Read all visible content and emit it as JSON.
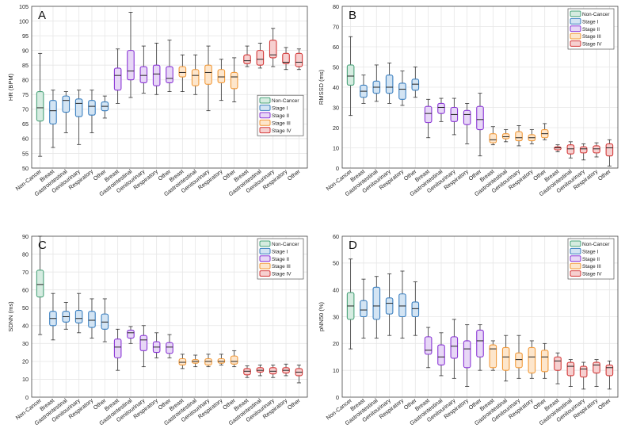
{
  "colors": {
    "Non-Cancer": {
      "edge": "#4aa37a",
      "fill": "#d6ece1"
    },
    "Stage I": {
      "edge": "#3a7fc0",
      "fill": "#d3e4f3"
    },
    "Stage II": {
      "edge": "#8a35d6",
      "fill": "#e7d7f6"
    },
    "Stage III": {
      "edge": "#f29a3a",
      "fill": "#fde6cc"
    },
    "Stage IV": {
      "edge": "#d43a3a",
      "fill": "#f6d0d0"
    },
    "median": "#222222",
    "whisker": "#333333",
    "grid": "#e6e6e6",
    "axis": "#444444"
  },
  "chart_data": [
    {
      "type": "box",
      "panel_label": "A",
      "ylabel": "HR (BPM)",
      "ylim": [
        50,
        105
      ],
      "yticks": [
        50,
        55,
        60,
        65,
        70,
        75,
        80,
        85,
        90,
        95,
        100,
        105
      ],
      "legend": [
        "Non-Cancer",
        "Stage I",
        "Stage II",
        "Stage III",
        "Stage IV"
      ],
      "legend_position": "middle-right",
      "categories": [
        "Non-Cancer",
        "Breast",
        "Gastrointestinal",
        "Genitourinary",
        "Respiratory",
        "Other",
        "Breast",
        "Gastrointestinal",
        "Genitourinary",
        "Respiratory",
        "Other",
        "Breast",
        "Gastrointestinal",
        "Genitourinary",
        "Respiratory",
        "Other",
        "Breast",
        "Gastrointestinal",
        "Genitourinary",
        "Respiratory",
        "Other"
      ],
      "groups": [
        "Non-Cancer",
        "Stage I",
        "Stage I",
        "Stage I",
        "Stage I",
        "Stage I",
        "Stage II",
        "Stage II",
        "Stage II",
        "Stage II",
        "Stage II",
        "Stage III",
        "Stage III",
        "Stage III",
        "Stage III",
        "Stage III",
        "Stage IV",
        "Stage IV",
        "Stage IV",
        "Stage IV",
        "Stage IV"
      ],
      "boxes": [
        [
          54,
          66,
          70.5,
          76,
          89
        ],
        [
          57,
          65,
          69.5,
          73,
          76.5
        ],
        [
          62,
          69,
          73,
          74.5,
          76
        ],
        [
          58,
          67.5,
          72,
          73.5,
          76.5
        ],
        [
          62,
          68,
          71,
          73,
          76.5
        ],
        [
          67,
          69.5,
          71,
          72.5,
          74.5
        ],
        [
          72,
          76.5,
          81.5,
          84,
          90.5
        ],
        [
          74,
          80,
          83,
          90,
          103
        ],
        [
          75.5,
          79,
          81.5,
          84.5,
          91.5
        ],
        [
          75,
          78,
          82,
          85,
          92.5
        ],
        [
          76,
          79,
          80.5,
          84.5,
          93.5
        ],
        [
          76,
          81,
          82.5,
          84.5,
          88.5
        ],
        [
          75,
          78,
          81.5,
          83.5,
          88.5
        ],
        [
          69.5,
          78.5,
          82.5,
          85,
          91.5
        ],
        [
          73,
          79,
          81,
          83.5,
          87
        ],
        [
          72.5,
          77,
          81,
          82.5,
          87.5
        ],
        [
          84.5,
          85.5,
          86.5,
          88.5,
          91.5
        ],
        [
          84,
          85,
          87,
          90,
          92.5
        ],
        [
          84.5,
          87.5,
          88.5,
          93.5,
          97.5
        ],
        [
          83.5,
          85.5,
          86,
          89,
          91
        ],
        [
          83.5,
          84.5,
          86,
          89,
          90.5
        ]
      ]
    },
    {
      "type": "box",
      "panel_label": "B",
      "ylabel": "RMSSD (ms)",
      "ylim": [
        0,
        80
      ],
      "yticks": [
        0,
        10,
        20,
        30,
        40,
        50,
        60,
        70,
        80
      ],
      "legend": [
        "Non-Cancer",
        "Stage I",
        "Stage II",
        "Stage III",
        "Stage IV"
      ],
      "legend_position": "top-right",
      "categories": [
        "Non-Cancer",
        "Breast",
        "Gastrointestinal",
        "Genitourinary",
        "Respiratory",
        "Other",
        "Breast",
        "Gastrointestinal",
        "Genitourinary",
        "Respiratory",
        "Other",
        "Breast",
        "Gastrointestinal",
        "Genitourinary",
        "Respiratory",
        "Other",
        "Breast",
        "Gastrointestinal",
        "Genitourinary",
        "Respiratory",
        "Other"
      ],
      "groups": [
        "Non-Cancer",
        "Stage I",
        "Stage I",
        "Stage I",
        "Stage I",
        "Stage I",
        "Stage II",
        "Stage II",
        "Stage II",
        "Stage II",
        "Stage II",
        "Stage III",
        "Stage III",
        "Stage III",
        "Stage III",
        "Stage III",
        "Stage IV",
        "Stage IV",
        "Stage IV",
        "Stage IV",
        "Stage IV"
      ],
      "boxes": [
        [
          26,
          41,
          45.5,
          51,
          65
        ],
        [
          32,
          35,
          38,
          41,
          46
        ],
        [
          33,
          37,
          40,
          43,
          51
        ],
        [
          32,
          37,
          40,
          46,
          52
        ],
        [
          31,
          34,
          39,
          42,
          48
        ],
        [
          35,
          38.5,
          41.5,
          44,
          50
        ],
        [
          15,
          22.5,
          27,
          30.5,
          34
        ],
        [
          23,
          27,
          30,
          32,
          34.5
        ],
        [
          16.5,
          23,
          26.5,
          30,
          34.5
        ],
        [
          12,
          21.5,
          26.5,
          28.5,
          32
        ],
        [
          6,
          19,
          24,
          30.5,
          37
        ],
        [
          11.5,
          12.5,
          14,
          17,
          20.5
        ],
        [
          13,
          14.5,
          15.5,
          17,
          19
        ],
        [
          11,
          13.5,
          15,
          18,
          21
        ],
        [
          12,
          13.5,
          15,
          16.5,
          19
        ],
        [
          14,
          15,
          17,
          19,
          22
        ],
        [
          8,
          9,
          10,
          10.5,
          11.5
        ],
        [
          5,
          7,
          9.5,
          11.5,
          13
        ],
        [
          4,
          7.5,
          9.5,
          10.5,
          12
        ],
        [
          5.5,
          7.5,
          9.5,
          11,
          12.5
        ],
        [
          1,
          6,
          10,
          12,
          14
        ]
      ]
    },
    {
      "type": "box",
      "panel_label": "C",
      "ylabel": "SDNN (ms)",
      "ylim": [
        0,
        90
      ],
      "yticks": [
        0,
        10,
        20,
        30,
        40,
        50,
        60,
        70,
        80,
        90
      ],
      "legend": [
        "Non-Cancer",
        "Stage I",
        "Stage II",
        "Stage III",
        "Stage IV"
      ],
      "legend_position": "top-right",
      "categories": [
        "Non-Cancer",
        "Breast",
        "Gastrointestinal",
        "Genitourinary",
        "Respiratory",
        "Other",
        "Breast",
        "Gastrointestinal",
        "Genitourinary",
        "Respiratory",
        "Other",
        "Breast",
        "Gastrointestinal",
        "Genitourinary",
        "Respiratory",
        "Other",
        "Breast",
        "Gastrointestinal",
        "Genitourinary",
        "Respiratory",
        "Other"
      ],
      "groups": [
        "Non-Cancer",
        "Stage I",
        "Stage I",
        "Stage I",
        "Stage I",
        "Stage I",
        "Stage II",
        "Stage II",
        "Stage II",
        "Stage II",
        "Stage II",
        "Stage III",
        "Stage III",
        "Stage III",
        "Stage III",
        "Stage III",
        "Stage IV",
        "Stage IV",
        "Stage IV",
        "Stage IV",
        "Stage IV"
      ],
      "boxes": [
        [
          35,
          56,
          63,
          71,
          90
        ],
        [
          32,
          40,
          44,
          48,
          58
        ],
        [
          38,
          42,
          45,
          48,
          53
        ],
        [
          36,
          41.5,
          44,
          48.5,
          58
        ],
        [
          33,
          39,
          43,
          48,
          55
        ],
        [
          31,
          38,
          42,
          46.5,
          55
        ],
        [
          15,
          22,
          28,
          32.5,
          38
        ],
        [
          30,
          33,
          36,
          37.5,
          39.5
        ],
        [
          17,
          26,
          32,
          34.5,
          40
        ],
        [
          22,
          25,
          28,
          31,
          36
        ],
        [
          22,
          24.5,
          28,
          30.5,
          35
        ],
        [
          16,
          18,
          19.5,
          21.5,
          24
        ],
        [
          17,
          19,
          20,
          21,
          23.5
        ],
        [
          17,
          18,
          20,
          21.5,
          24
        ],
        [
          18,
          19,
          20,
          21.5,
          24
        ],
        [
          17,
          18.5,
          20,
          23,
          26
        ],
        [
          11,
          12.5,
          14.5,
          16,
          17.5
        ],
        [
          12,
          14,
          15,
          16.5,
          18
        ],
        [
          11,
          13,
          14.5,
          16.5,
          18
        ],
        [
          12,
          13.5,
          15,
          16.5,
          18.5
        ],
        [
          8,
          12,
          14,
          16,
          18
        ]
      ]
    },
    {
      "type": "box",
      "panel_label": "D",
      "ylabel": "pNN50 (%)",
      "ylim": [
        0,
        60
      ],
      "yticks": [
        0,
        10,
        20,
        30,
        40,
        50,
        60
      ],
      "legend": [
        "Non-Cancer",
        "Stage I",
        "Stage II",
        "Stage III",
        "Stage IV"
      ],
      "legend_position": "top-right",
      "categories": [
        "Non-Cancer",
        "Breast",
        "Gastrointestinal",
        "Genitourinary",
        "Respiratory",
        "Other",
        "Breast",
        "Gastrointestinal",
        "Genitourinary",
        "Respiratory",
        "Other",
        "Breast",
        "Gastrointestinal",
        "Genitourinary",
        "Respiratory",
        "Other",
        "Breast",
        "Gastrointestinal",
        "Genitourinary",
        "Respiratory",
        "Other"
      ],
      "groups": [
        "Non-Cancer",
        "Stage I",
        "Stage I",
        "Stage I",
        "Stage I",
        "Stage I",
        "Stage II",
        "Stage II",
        "Stage II",
        "Stage II",
        "Stage II",
        "Stage III",
        "Stage III",
        "Stage III",
        "Stage III",
        "Stage III",
        "Stage IV",
        "Stage IV",
        "Stage IV",
        "Stage IV",
        "Stage IV"
      ],
      "boxes": [
        [
          18,
          29,
          34,
          39,
          51.5
        ],
        [
          22,
          30,
          32.5,
          36,
          44
        ],
        [
          22,
          29,
          34,
          41,
          45
        ],
        [
          23,
          31,
          35,
          37,
          46
        ],
        [
          22,
          30,
          34,
          38.5,
          47
        ],
        [
          23,
          30,
          33,
          35.5,
          43
        ],
        [
          11,
          16,
          17.5,
          22.5,
          26
        ],
        [
          8,
          12,
          15,
          19.5,
          24
        ],
        [
          7,
          14.5,
          19,
          22.5,
          29
        ],
        [
          4,
          11,
          18,
          21,
          27
        ],
        [
          10,
          15,
          21,
          25,
          27
        ],
        [
          10,
          11,
          18,
          19.5,
          21
        ],
        [
          6,
          10,
          15,
          18.5,
          23
        ],
        [
          7,
          11,
          14,
          16.5,
          23
        ],
        [
          7,
          9,
          15,
          18.5,
          21
        ],
        [
          7,
          9.5,
          15,
          17.5,
          20
        ],
        [
          5,
          10,
          13.5,
          15,
          16.5
        ],
        [
          4,
          8,
          11.5,
          13,
          14
        ],
        [
          3,
          7.5,
          10.5,
          11.5,
          13
        ],
        [
          4,
          9,
          12,
          13,
          14
        ],
        [
          3,
          8,
          11,
          12,
          13.5
        ]
      ]
    }
  ]
}
